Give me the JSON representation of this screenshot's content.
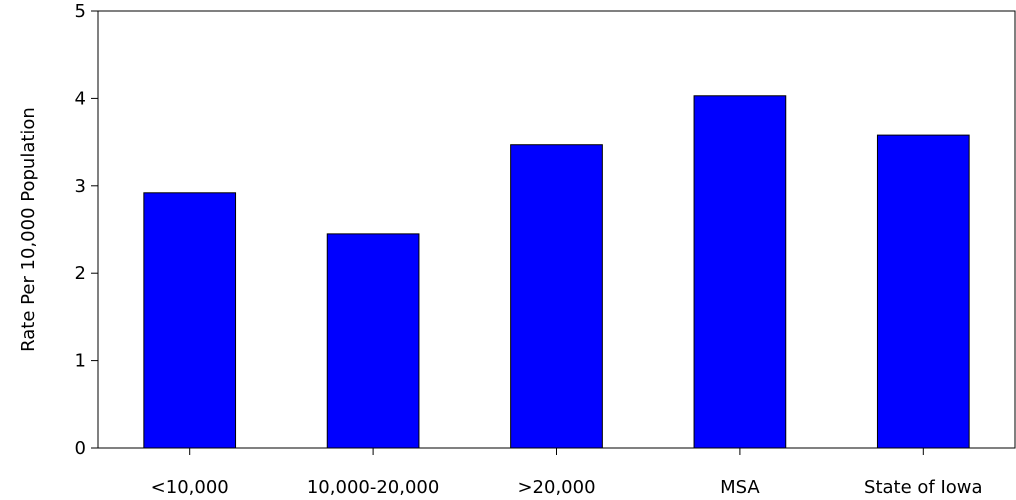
{
  "chart_data": {
    "type": "bar",
    "title": "",
    "xlabel": "",
    "ylabel": "Rate Per 10,000 Population",
    "categories": [
      "<10,000",
      "10,000-20,000",
      ">20,000",
      "MSA",
      "State of Iowa"
    ],
    "values": [
      2.92,
      2.45,
      3.47,
      4.03,
      3.58
    ],
    "ylim": [
      0,
      5
    ],
    "yticks": [
      0,
      1,
      2,
      3,
      4,
      5
    ],
    "grid": false,
    "legend": "none",
    "bar_color": "#0000ff"
  }
}
